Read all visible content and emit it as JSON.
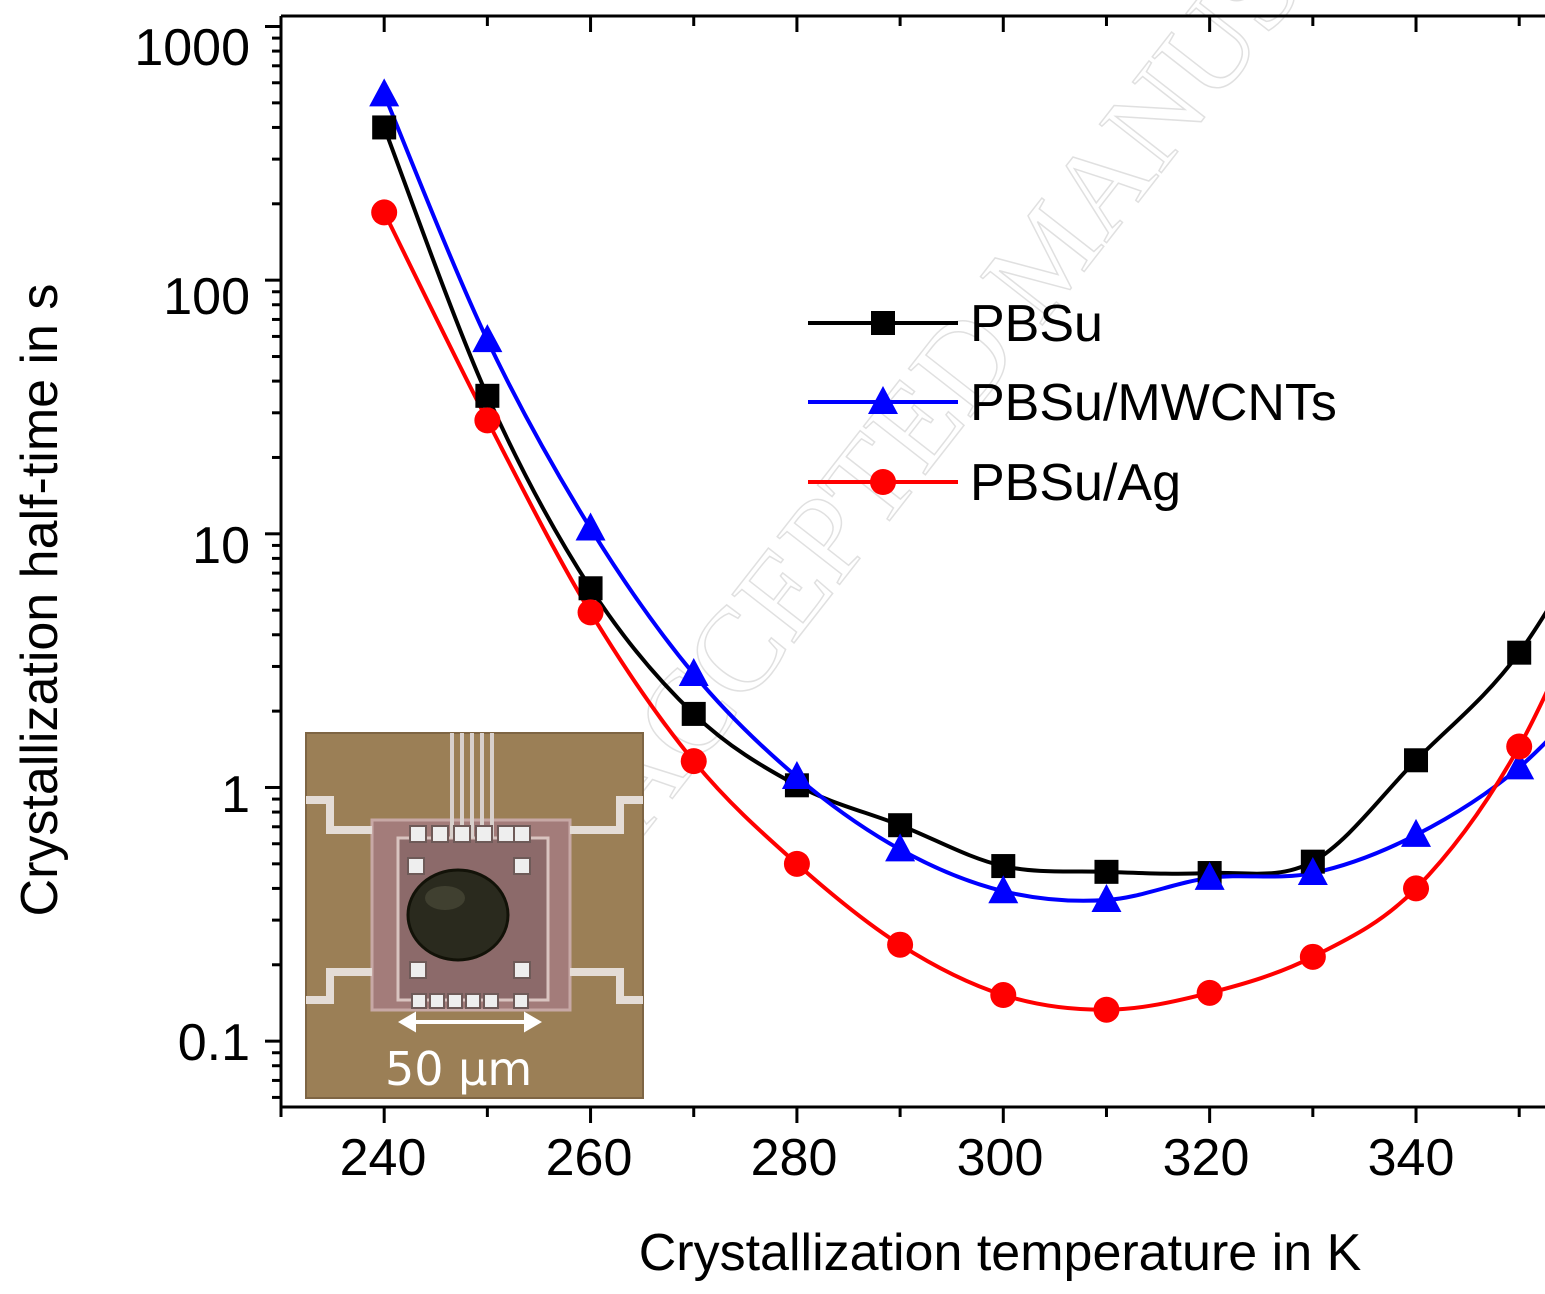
{
  "watermark": "ACCEPTED MANUSCRIPT",
  "inset": {
    "scale_label": "50 µm"
  },
  "chart_data": {
    "type": "line",
    "title": "",
    "xlabel": "Crystallization temperature in K",
    "ylabel": "Crystallization half-time in s",
    "x_ticks": [
      240,
      260,
      280,
      300,
      320,
      340
    ],
    "y_ticks": [
      0.1,
      1,
      10,
      100,
      1000
    ],
    "y_tick_labels": [
      "0.1",
      "1",
      "10",
      "100",
      "1000"
    ],
    "xlim": [
      230,
      352.5
    ],
    "ylim": [
      0.055,
      1100
    ],
    "y_scale": "log",
    "grid": false,
    "legend_position": "center-right",
    "series": [
      {
        "name": "PBSu",
        "color": "#000000",
        "marker": "square",
        "x": [
          240,
          250,
          260,
          270,
          280,
          290,
          300,
          310,
          320,
          330,
          340,
          350
        ],
        "y": [
          400,
          35,
          6.1,
          1.95,
          1.02,
          0.71,
          0.49,
          0.465,
          0.46,
          0.51,
          1.28,
          3.4
        ]
      },
      {
        "name": "PBSu/MWCNTs",
        "color": "#0000ff",
        "marker": "triangle",
        "x": [
          240,
          250,
          260,
          270,
          280,
          290,
          300,
          310,
          320,
          330,
          340,
          350
        ],
        "y": [
          540,
          58,
          10.5,
          2.8,
          1.1,
          0.57,
          0.39,
          0.36,
          0.44,
          0.46,
          0.65,
          1.2
        ]
      },
      {
        "name": "PBSu/Ag",
        "color": "#ff0000",
        "marker": "circle",
        "x": [
          240,
          250,
          260,
          270,
          280,
          290,
          300,
          310,
          320,
          330,
          340,
          350
        ],
        "y": [
          185,
          28,
          4.9,
          1.27,
          0.5,
          0.24,
          0.152,
          0.133,
          0.155,
          0.215,
          0.4,
          1.45
        ]
      }
    ]
  }
}
